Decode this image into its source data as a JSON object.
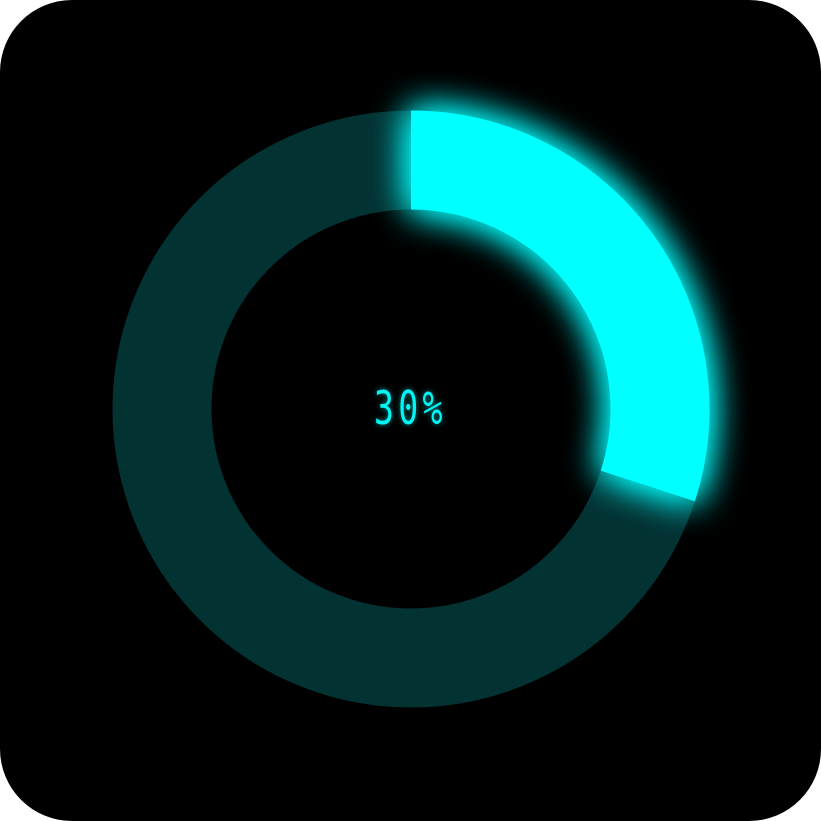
{
  "progress": {
    "value": 0.3,
    "label": "30%"
  },
  "colors": {
    "background": "#000000",
    "track": "#033233",
    "fill": "#00ffff",
    "text": "#00f5f5"
  }
}
